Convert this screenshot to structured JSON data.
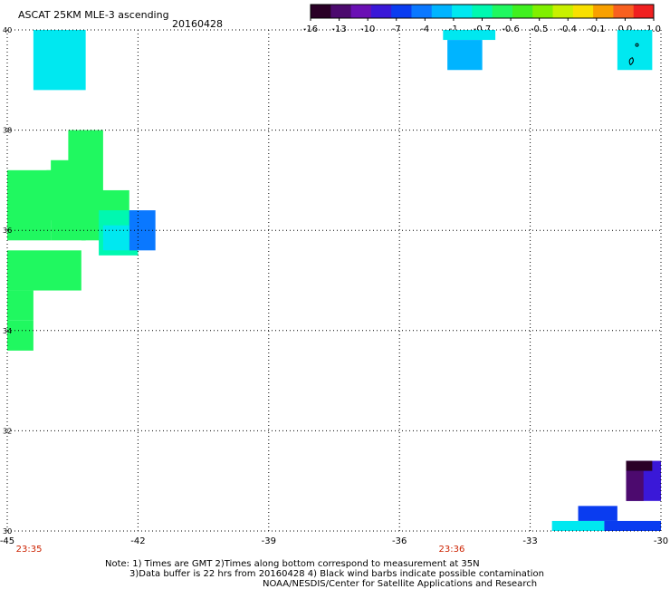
{
  "header": {
    "title": "ASCAT 25KM MLE-3 ascending",
    "date": "20160428"
  },
  "colorbar": {
    "colors": [
      "#2a0026",
      "#4c0a6e",
      "#6a10b4",
      "#3a18d8",
      "#0a3cf0",
      "#0a78ff",
      "#00b4ff",
      "#00e8f0",
      "#00f8b0",
      "#20f860",
      "#40f020",
      "#80f000",
      "#c8f000",
      "#f8e000",
      "#f8a000",
      "#f86020",
      "#f02020"
    ],
    "ticks": [
      "-16",
      "-13",
      "-10",
      "-7",
      "-4",
      "-1",
      "-0.7",
      "-0.6",
      "-0.5",
      "-0.4",
      "-0.1",
      "0.0",
      "1.0"
    ]
  },
  "map": {
    "lon_labels": [
      "-45",
      "-42",
      "-39",
      "-36",
      "-33",
      "-30"
    ],
    "lat_labels": [
      "40",
      "38",
      "36",
      "34",
      "32",
      "30"
    ],
    "time_labels": [
      "23:35",
      "23:36"
    ],
    "time_color": "#cc2200",
    "grid_color": "#000000",
    "land_or_data_note": "colored swath cells by MLE value",
    "cells": [
      {
        "lon0": -44.4,
        "lon1": -43.2,
        "lat0": 38.8,
        "lat1": 40.0,
        "color": "#00e8f0"
      },
      {
        "lon0": -43.6,
        "lon1": -42.8,
        "lat0": 36.6,
        "lat1": 38.0,
        "color": "#20f860"
      },
      {
        "lon0": -44.0,
        "lon1": -43.2,
        "lat0": 35.8,
        "lat1": 37.4,
        "color": "#20f860"
      },
      {
        "lon0": -45.0,
        "lon1": -44.0,
        "lat0": 35.8,
        "lat1": 37.2,
        "color": "#20f860"
      },
      {
        "lon0": -44.1,
        "lon1": -43.2,
        "lat0": 36.2,
        "lat1": 37.2,
        "color": "#20f860"
      },
      {
        "lon0": -43.3,
        "lon1": -42.2,
        "lat0": 35.8,
        "lat1": 36.8,
        "color": "#20f860"
      },
      {
        "lon0": -42.9,
        "lon1": -42.0,
        "lat0": 35.5,
        "lat1": 36.4,
        "color": "#00f8b0"
      },
      {
        "lon0": -42.2,
        "lon1": -41.6,
        "lat0": 35.6,
        "lat1": 36.4,
        "color": "#0a78ff"
      },
      {
        "lon0": -42.8,
        "lon1": -42.2,
        "lat0": 35.6,
        "lat1": 36.1,
        "color": "#00e8f0"
      },
      {
        "lon0": -45.0,
        "lon1": -43.3,
        "lat0": 34.8,
        "lat1": 35.6,
        "color": "#20f860"
      },
      {
        "lon0": -45.0,
        "lon1": -44.4,
        "lat0": 34.2,
        "lat1": 34.8,
        "color": "#20f860"
      },
      {
        "lon0": -45.0,
        "lon1": -44.4,
        "lat0": 33.6,
        "lat1": 34.2,
        "color": "#20f860"
      },
      {
        "lon0": -35.0,
        "lon1": -33.8,
        "lat0": 39.8,
        "lat1": 40.0,
        "color": "#00e8f0"
      },
      {
        "lon0": -34.9,
        "lon1": -34.1,
        "lat0": 39.2,
        "lat1": 39.8,
        "color": "#00b4ff"
      },
      {
        "lon0": -31.0,
        "lon1": -30.2,
        "lat0": 39.2,
        "lat1": 40.0,
        "color": "#00e8f0"
      },
      {
        "lon0": -30.8,
        "lon1": -30.0,
        "lat0": 30.6,
        "lat1": 31.4,
        "color": "#3a18d8"
      },
      {
        "lon0": -30.8,
        "lon1": -30.4,
        "lat0": 30.6,
        "lat1": 31.2,
        "color": "#4c0a6e"
      },
      {
        "lon0": -30.8,
        "lon1": -30.2,
        "lat0": 31.2,
        "lat1": 31.4,
        "color": "#2a0026"
      },
      {
        "lon0": -31.9,
        "lon1": -31.0,
        "lat0": 30.2,
        "lat1": 30.5,
        "color": "#0a3cf0"
      },
      {
        "lon0": -32.5,
        "lon1": -31.3,
        "lat0": 30.0,
        "lat1": 30.2,
        "color": "#00e8f0"
      },
      {
        "lon0": -31.3,
        "lon1": -30.0,
        "lat0": 30.0,
        "lat1": 30.2,
        "color": "#0a3cf0"
      }
    ]
  },
  "notes": {
    "line1": "Note: 1) Times are GMT 2)Times along bottom correspond to measurement at 35N",
    "line2": "3)Data buffer is 22 hrs from 20160428 4) Black wind barbs indicate possible contamination",
    "line3": "NOAA/NESDIS/Center for Satellite Applications and Research"
  }
}
